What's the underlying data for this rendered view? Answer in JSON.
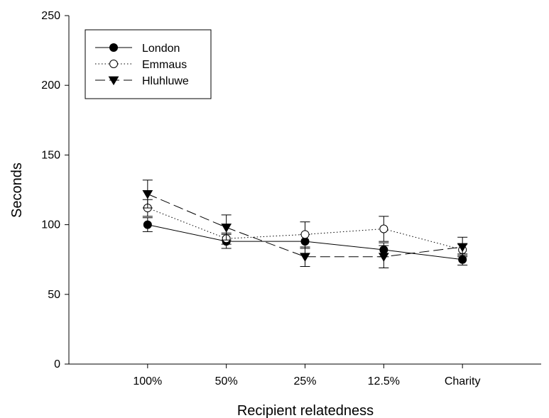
{
  "chart_data": {
    "type": "line",
    "xlabel": "Recipient relatedness",
    "ylabel": "Seconds",
    "categories": [
      "100%",
      "50%",
      "25%",
      "12.5%",
      "Charity"
    ],
    "ylim": [
      0,
      250
    ],
    "yticks": [
      0,
      50,
      100,
      150,
      200,
      250
    ],
    "grid": false,
    "legend_position": "top-left",
    "series": [
      {
        "name": "London",
        "marker": "filled-circle",
        "line_style": "solid",
        "values": [
          100,
          88,
          88,
          82,
          75
        ],
        "error": [
          5,
          5,
          5,
          5,
          4
        ]
      },
      {
        "name": "Emmaus",
        "marker": "open-circle",
        "line_style": "dotted",
        "values": [
          112,
          90,
          93,
          97,
          82
        ],
        "error": [
          6,
          4,
          9,
          9,
          4
        ]
      },
      {
        "name": "Hluhluwe",
        "marker": "filled-triangle-down",
        "line_style": "dashed",
        "values": [
          122,
          98,
          77,
          77,
          84
        ],
        "error": [
          10,
          9,
          7,
          8,
          7
        ]
      }
    ]
  }
}
